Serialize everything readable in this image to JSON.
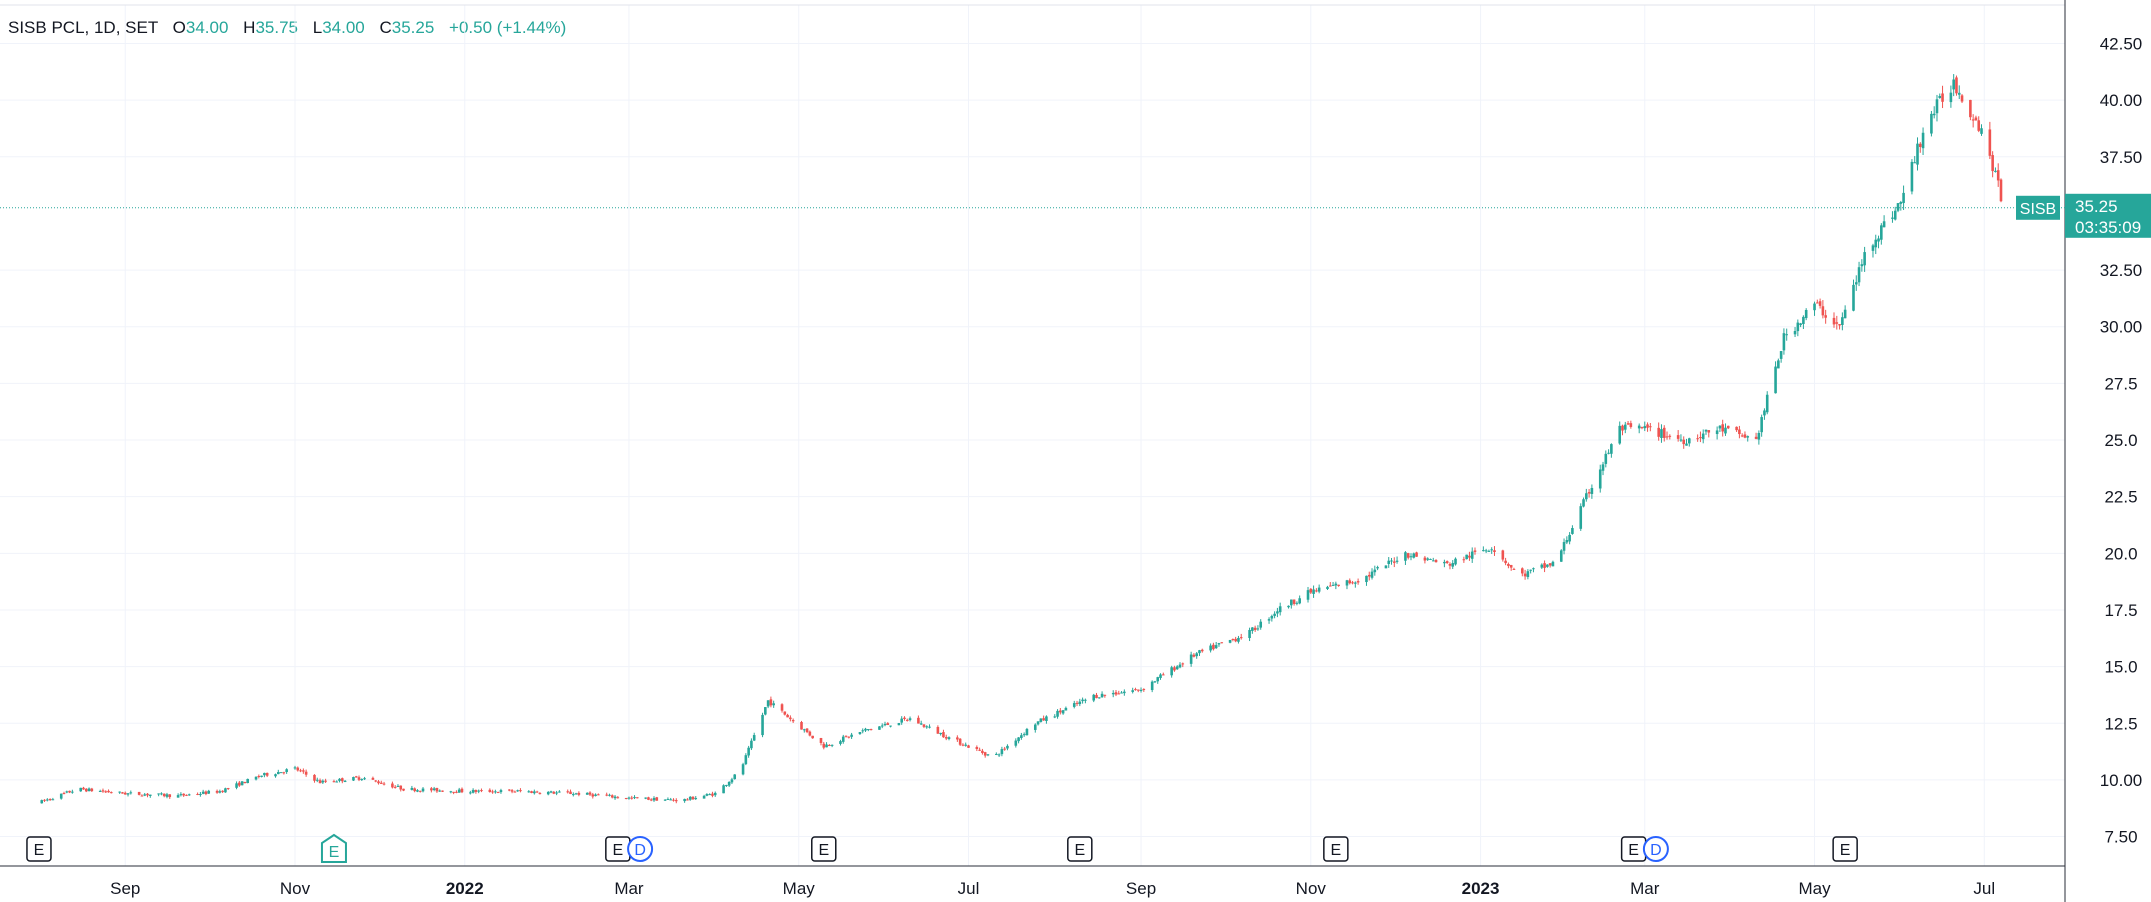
{
  "legend": {
    "symbol": "SISB PCL, 1D, SET",
    "o_label": "O",
    "o_value": "34.00",
    "h_label": "H",
    "h_value": "35.75",
    "l_label": "L",
    "l_value": "34.00",
    "c_label": "C",
    "c_value": "35.25",
    "change": "+0.50 (+1.44%)"
  },
  "price_label": {
    "symbol": "SISB",
    "price": "35.25",
    "countdown": "03:35:09"
  },
  "colors": {
    "up": "#26a69a",
    "down": "#ef5350",
    "grid": "#f0f3fa",
    "axis_text": "#131722",
    "dividend": "#2962ff"
  },
  "chart_data": {
    "type": "candlestick",
    "ylim": [
      6.2,
      44.2
    ],
    "yticks": [
      7.5,
      10,
      12.5,
      15,
      17.5,
      20,
      22.5,
      25,
      27.5,
      30,
      32.5,
      37.5,
      40,
      42.5
    ],
    "ytick_labels": [
      "7.50",
      "10.00",
      "12.5",
      "15.0",
      "17.5",
      "20.0",
      "22.5",
      "25.0",
      "27.5",
      "30.00",
      "32.50",
      "37.50",
      "40.00",
      "42.50"
    ],
    "xaxis_labels": [
      {
        "label": "Sep",
        "date": "2021-09",
        "bold": false
      },
      {
        "label": "Nov",
        "date": "2021-11",
        "bold": false
      },
      {
        "label": "2022",
        "date": "2022-01",
        "bold": true
      },
      {
        "label": "Mar",
        "date": "2022-03",
        "bold": false
      },
      {
        "label": "May",
        "date": "2022-05",
        "bold": false
      },
      {
        "label": "Jul",
        "date": "2022-07",
        "bold": false
      },
      {
        "label": "Sep",
        "date": "2022-09",
        "bold": false
      },
      {
        "label": "Nov",
        "date": "2022-11",
        "bold": false
      },
      {
        "label": "2023",
        "date": "2023-01",
        "bold": true
      },
      {
        "label": "Mar",
        "date": "2023-03",
        "bold": false
      },
      {
        "label": "May",
        "date": "2023-05",
        "bold": false
      },
      {
        "label": "Jul",
        "date": "2023-07",
        "bold": false
      }
    ],
    "last_price": 35.25,
    "price_path": [
      [
        "2021-08-01",
        9.0
      ],
      [
        "2021-08-15",
        9.6
      ],
      [
        "2021-09-01",
        9.4
      ],
      [
        "2021-09-20",
        9.3
      ],
      [
        "2021-10-05",
        9.5
      ],
      [
        "2021-10-20",
        10.2
      ],
      [
        "2021-11-01",
        10.5
      ],
      [
        "2021-11-10",
        9.9
      ],
      [
        "2021-11-25",
        10.1
      ],
      [
        "2021-12-10",
        9.6
      ],
      [
        "2022-01-01",
        9.5
      ],
      [
        "2022-01-20",
        9.5
      ],
      [
        "2022-02-10",
        9.4
      ],
      [
        "2022-03-01",
        9.2
      ],
      [
        "2022-03-20",
        9.1
      ],
      [
        "2022-04-01",
        9.4
      ],
      [
        "2022-04-10",
        10.4
      ],
      [
        "2022-04-20",
        13.5
      ],
      [
        "2022-05-01",
        12.4
      ],
      [
        "2022-05-10",
        11.5
      ],
      [
        "2022-05-25",
        12.2
      ],
      [
        "2022-06-10",
        12.7
      ],
      [
        "2022-06-25",
        11.8
      ],
      [
        "2022-07-10",
        11.0
      ],
      [
        "2022-07-25",
        12.5
      ],
      [
        "2022-08-15",
        13.7
      ],
      [
        "2022-09-01",
        14.0
      ],
      [
        "2022-09-20",
        15.5
      ],
      [
        "2022-10-10",
        16.5
      ],
      [
        "2022-10-20",
        17.5
      ],
      [
        "2022-11-01",
        18.3
      ],
      [
        "2022-11-20",
        18.9
      ],
      [
        "2022-12-05",
        20.0
      ],
      [
        "2022-12-20",
        19.5
      ],
      [
        "2023-01-05",
        20.3
      ],
      [
        "2023-01-15",
        19.0
      ],
      [
        "2023-01-28",
        19.6
      ],
      [
        "2023-02-10",
        23.0
      ],
      [
        "2023-02-20",
        25.5
      ],
      [
        "2023-03-01",
        25.5
      ],
      [
        "2023-03-15",
        25.0
      ],
      [
        "2023-03-28",
        25.5
      ],
      [
        "2023-04-10",
        25.0
      ],
      [
        "2023-04-20",
        29.5
      ],
      [
        "2023-05-01",
        31.0
      ],
      [
        "2023-05-10",
        30.0
      ],
      [
        "2023-05-20",
        33.5
      ],
      [
        "2023-06-01",
        35.5
      ],
      [
        "2023-06-10",
        39.0
      ],
      [
        "2023-06-20",
        40.8
      ],
      [
        "2023-07-01",
        38.5
      ],
      [
        "2023-07-08",
        35.25
      ]
    ],
    "events": [
      {
        "date": "2021-08-01",
        "kind": "E",
        "style": "earnings"
      },
      {
        "date": "2021-11-15",
        "kind": "E",
        "style": "earnings-upcoming"
      },
      {
        "date": "2022-02-25",
        "kind": "E",
        "style": "earnings"
      },
      {
        "date": "2022-03-05",
        "kind": "D",
        "style": "dividend"
      },
      {
        "date": "2022-05-10",
        "kind": "E",
        "style": "earnings"
      },
      {
        "date": "2022-08-10",
        "kind": "E",
        "style": "earnings"
      },
      {
        "date": "2022-11-10",
        "kind": "E",
        "style": "earnings"
      },
      {
        "date": "2023-02-25",
        "kind": "E",
        "style": "earnings"
      },
      {
        "date": "2023-03-05",
        "kind": "D",
        "style": "dividend"
      },
      {
        "date": "2023-05-12",
        "kind": "E",
        "style": "earnings"
      }
    ]
  }
}
